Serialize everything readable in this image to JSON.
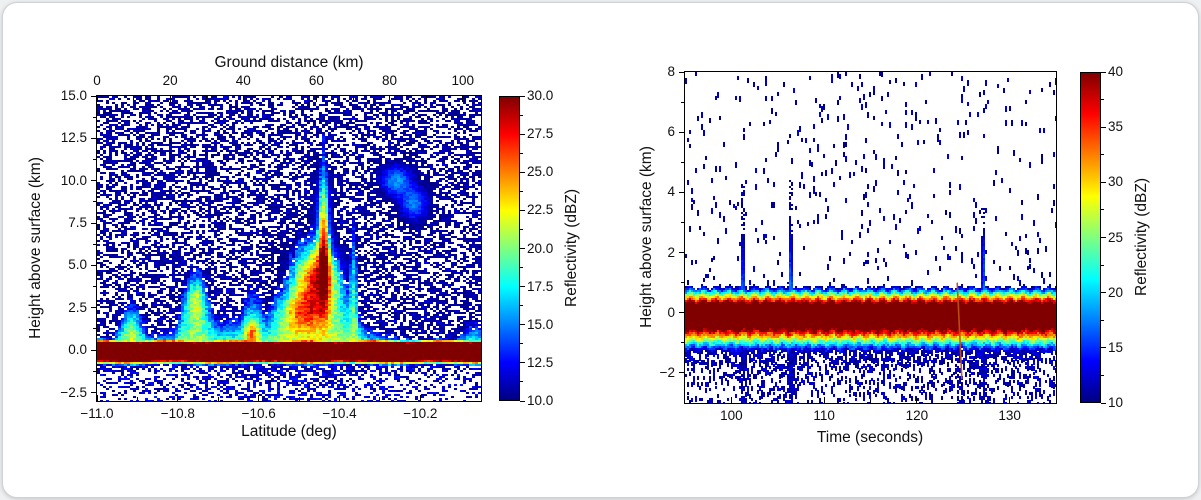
{
  "window": {
    "background": "#eef0f2",
    "card_background": "#ffffff",
    "card_border": "#cfd2d6"
  },
  "text_color": "#111111",
  "chart_data": [
    {
      "id": "latitude-cross-section",
      "type": "heatmap",
      "colormap": "jet",
      "xlabel": "Latitude (deg)",
      "top_xlabel": "Ground distance (km)",
      "ylabel": "Height above surface (km)",
      "colorbar_label": "Reflectivity (dBZ)",
      "xlim": [
        -11.0,
        -10.05
      ],
      "top_xlim": [
        0,
        105
      ],
      "ylim": [
        -3,
        15
      ],
      "clim": [
        10,
        30
      ],
      "xticks": {
        "values": [
          -11.0,
          -10.8,
          -10.6,
          -10.4,
          -10.2
        ],
        "labels": [
          "−11.0",
          "−10.8",
          "−10.6",
          "−10.4",
          "−10.2"
        ]
      },
      "top_xticks": {
        "values": [
          0,
          20,
          40,
          60,
          80,
          100
        ],
        "labels": [
          "0",
          "20",
          "40",
          "60",
          "80",
          "100"
        ]
      },
      "yticks": {
        "values": [
          15,
          12.5,
          10,
          7.5,
          5,
          2.5,
          0,
          -2.5
        ],
        "labels": [
          "15.0",
          "12.5",
          "10.0",
          "7.5",
          "5.0",
          "2.5",
          "0.0",
          "−2.5"
        ]
      },
      "colorbar_ticks": {
        "values": [
          30,
          27.5,
          25,
          22.5,
          20,
          17.5,
          15,
          12.5,
          10
        ],
        "labels": [
          "30.0",
          "27.5",
          "25.0",
          "22.5",
          "20.0",
          "17.5",
          "15.0",
          "12.5",
          "10.0"
        ]
      },
      "features": {
        "surface_band": {
          "y_top_km": 0.33,
          "y_bottom_km": -0.45,
          "dbz": 45
        },
        "cells": [
          {
            "x": -10.915,
            "w": 0.04,
            "top": 3.1
          },
          {
            "x": -10.755,
            "w": 0.048,
            "top": 5.2
          },
          {
            "x": -10.615,
            "w": 0.042,
            "top": 4.0
          },
          {
            "x": -10.465,
            "w": 0.105,
            "top": 7.2
          },
          {
            "x": -10.44,
            "w": 0.02,
            "top": 12.7
          },
          {
            "x": -10.365,
            "w": 0.013,
            "top": 8.3
          },
          {
            "x": -10.57,
            "w": 0.33,
            "top": 2.3
          },
          {
            "x": -10.06,
            "w": 0.06,
            "top": 1.7
          }
        ],
        "cores": [
          {
            "x": -10.455,
            "y": 4.3,
            "sx": 0.055,
            "sy": 1.8,
            "amp": 12
          },
          {
            "x": -10.49,
            "y": 2.2,
            "sx": 0.06,
            "sy": 1.2,
            "amp": 7
          },
          {
            "x": -10.44,
            "y": 6.8,
            "sx": 0.018,
            "sy": 3.2,
            "amp": 9
          },
          {
            "x": -10.755,
            "y": 3.0,
            "sx": 0.027,
            "sy": 1.3,
            "amp": 6
          },
          {
            "x": -10.617,
            "y": 1.1,
            "sx": 0.016,
            "sy": 0.8,
            "amp": 7
          },
          {
            "x": -10.915,
            "y": 1.3,
            "sx": 0.022,
            "sy": 0.9,
            "amp": 3
          },
          {
            "x": -10.26,
            "y": 10.0,
            "sx": 0.04,
            "sy": 0.9,
            "amp": 6
          },
          {
            "x": -10.215,
            "y": 8.6,
            "sx": 0.035,
            "sy": 1.0,
            "amp": 5.5
          }
        ],
        "speckle_noise_dbz": [
          10,
          13
        ]
      }
    },
    {
      "id": "time-height-profile",
      "type": "heatmap",
      "colormap": "jet",
      "xlabel": "Time (seconds)",
      "ylabel": "Height above surface (km)",
      "colorbar_label": "Reflectivity (dBZ)",
      "xlim": [
        95,
        135
      ],
      "ylim": [
        -3,
        8
      ],
      "clim": [
        10,
        40
      ],
      "xticks": {
        "values": [
          100,
          110,
          120,
          130
        ],
        "labels": [
          "100",
          "110",
          "120",
          "130"
        ]
      },
      "yticks": {
        "values": [
          8,
          6,
          4,
          2,
          0,
          -2
        ],
        "labels": [
          "8",
          "6",
          "4",
          "2",
          "0",
          "−2"
        ]
      },
      "colorbar_ticks": {
        "values": [
          40,
          35,
          30,
          25,
          20,
          15,
          10
        ],
        "labels": [
          "40",
          "35",
          "30",
          "25",
          "20",
          "15",
          "10"
        ]
      },
      "features": {
        "surface_band": {
          "y_top_km": 0.2,
          "y_bottom_km": -0.4,
          "scallop_amp_km": 0.09,
          "scallop_period_s": 1.38,
          "dbz": 48
        },
        "precip_plumes": [
          {
            "t": 101.25,
            "top_km": 3.4,
            "sigma_s": 0.26,
            "core_amp": 0
          },
          {
            "t": 106.4,
            "top_km": 3.6,
            "sigma_s": 0.28,
            "core_amp": 0
          },
          {
            "t": 127.15,
            "top_km": 3.0,
            "sigma_s": 0.22,
            "core_amp": 3.5
          }
        ],
        "seam": {
          "t_start": 124.35,
          "y_start_km": 1.0,
          "t_end": 124.85,
          "y_end_km": -2.2
        },
        "speckle_noise_dbz": [
          10,
          13
        ]
      }
    }
  ]
}
